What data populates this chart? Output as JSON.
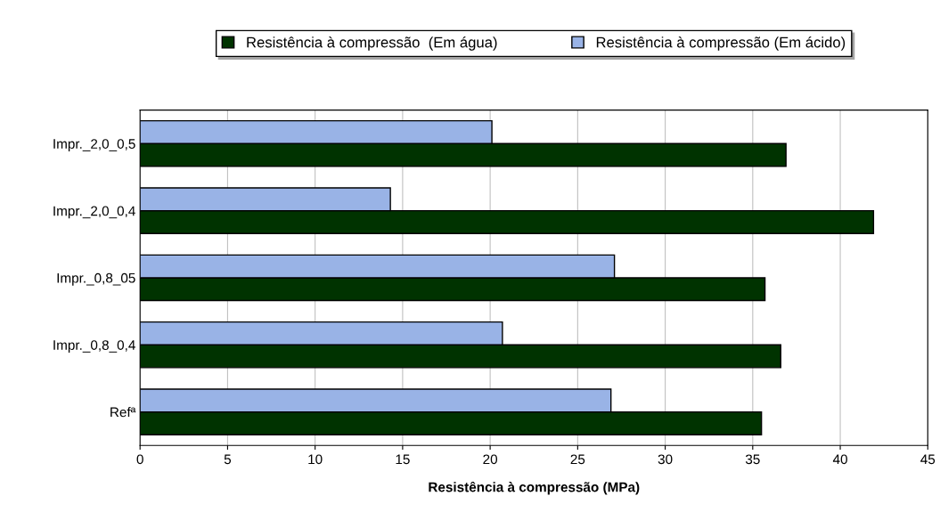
{
  "chart_data": {
    "type": "bar",
    "orientation": "horizontal",
    "xlabel": "Resistência à compressão (MPa)",
    "categories": [
      "Impr._2,0_0,5",
      "Impr._2,0_0,4",
      "Impr._0,8_05",
      "Impr._0,8_0,4",
      "Refª"
    ],
    "series": [
      {
        "name": "Resistência à compressão  (Em água)",
        "color": "#003300",
        "values": [
          36.9,
          41.9,
          35.7,
          36.6,
          35.5
        ]
      },
      {
        "name": "Resistência à compressão (Em ácido)",
        "color": "#99b3e6",
        "values": [
          20.1,
          14.3,
          27.1,
          20.7,
          26.9
        ]
      }
    ],
    "xlim": [
      0,
      45
    ],
    "xticks": [
      0,
      5,
      10,
      15,
      20,
      25,
      30,
      35,
      40,
      45
    ],
    "grid": "x",
    "legend": "top"
  }
}
